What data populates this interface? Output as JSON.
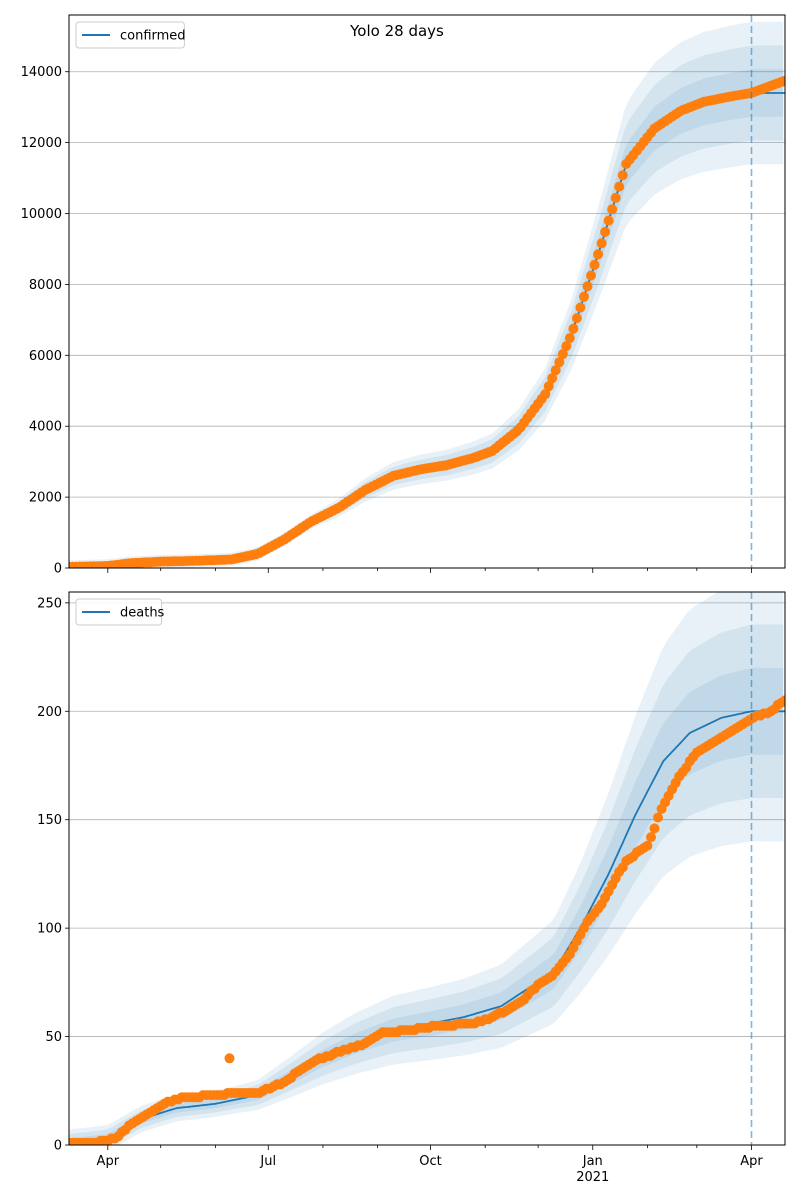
{
  "chart_data": [
    {
      "type": "line",
      "title": "Yolo 28 days",
      "legend": {
        "labels": [
          "confirmed"
        ],
        "location": "upper-left"
      },
      "xlim": [
        "2020-03-10",
        "2021-04-20"
      ],
      "ylim": [
        0,
        15600
      ],
      "yticks": [
        0,
        2000,
        4000,
        6000,
        8000,
        10000,
        12000,
        14000
      ],
      "xtick_labels": [
        "Apr",
        "Jul",
        "Oct",
        "Jan\n2021",
        "Apr"
      ],
      "grid": "horizontal",
      "forecast_start": "2021-04-01",
      "fit_series": {
        "name": "confirmed",
        "color": "#1f77b4",
        "points": [
          [
            "2020-03-10",
            30
          ],
          [
            "2020-04-01",
            60
          ],
          [
            "2020-04-15",
            140
          ],
          [
            "2020-05-01",
            180
          ],
          [
            "2020-05-20",
            200
          ],
          [
            "2020-06-10",
            240
          ],
          [
            "2020-06-25",
            400
          ],
          [
            "2020-07-10",
            800
          ],
          [
            "2020-07-25",
            1300
          ],
          [
            "2020-08-10",
            1700
          ],
          [
            "2020-08-25",
            2200
          ],
          [
            "2020-09-10",
            2600
          ],
          [
            "2020-09-25",
            2780
          ],
          [
            "2020-10-10",
            2900
          ],
          [
            "2020-10-25",
            3100
          ],
          [
            "2020-11-05",
            3300
          ],
          [
            "2020-11-20",
            3900
          ],
          [
            "2020-12-05",
            4900
          ],
          [
            "2020-12-20",
            6600
          ],
          [
            "2021-01-05",
            9000
          ],
          [
            "2021-01-20",
            11400
          ],
          [
            "2021-02-05",
            12400
          ],
          [
            "2021-02-20",
            12900
          ],
          [
            "2021-03-05",
            13150
          ],
          [
            "2021-03-20",
            13300
          ],
          [
            "2021-04-01",
            13400
          ],
          [
            "2021-04-20",
            13400
          ]
        ]
      },
      "observed": {
        "color": "#ff7f0e",
        "points": [
          [
            "2020-03-10",
            30
          ],
          [
            "2020-04-01",
            60
          ],
          [
            "2020-04-15",
            140
          ],
          [
            "2020-05-01",
            180
          ],
          [
            "2020-05-20",
            200
          ],
          [
            "2020-06-10",
            240
          ],
          [
            "2020-06-25",
            400
          ],
          [
            "2020-07-10",
            800
          ],
          [
            "2020-07-25",
            1300
          ],
          [
            "2020-08-10",
            1700
          ],
          [
            "2020-08-25",
            2200
          ],
          [
            "2020-09-10",
            2600
          ],
          [
            "2020-09-25",
            2780
          ],
          [
            "2020-10-10",
            2900
          ],
          [
            "2020-10-25",
            3100
          ],
          [
            "2020-11-05",
            3300
          ],
          [
            "2020-11-20",
            3900
          ],
          [
            "2020-12-05",
            4900
          ],
          [
            "2020-12-20",
            6600
          ],
          [
            "2021-01-05",
            9000
          ],
          [
            "2021-01-20",
            11400
          ],
          [
            "2021-02-05",
            12400
          ],
          [
            "2021-02-20",
            12900
          ],
          [
            "2021-03-05",
            13150
          ],
          [
            "2021-03-20",
            13300
          ],
          [
            "2021-04-01",
            13400
          ],
          [
            "2021-04-20",
            13750
          ]
        ]
      },
      "bands": {
        "color": "#1f77b4",
        "opacity": 0.1,
        "relative_widths": [
          0.05,
          0.1,
          0.15
        ]
      }
    },
    {
      "type": "line",
      "title": "",
      "legend": {
        "labels": [
          "deaths"
        ],
        "location": "upper-left"
      },
      "xlim": [
        "2020-03-10",
        "2021-04-20"
      ],
      "ylim": [
        0,
        255
      ],
      "yticks": [
        0,
        50,
        100,
        150,
        200,
        250
      ],
      "xtick_labels": [
        "Apr",
        "Jul",
        "Oct",
        "Jan\n2021",
        "Apr"
      ],
      "grid": "horizontal",
      "forecast_start": "2021-04-01",
      "fit_series": {
        "name": "deaths",
        "color": "#1f77b4",
        "points": [
          [
            "2020-03-10",
            1
          ],
          [
            "2020-04-01",
            3
          ],
          [
            "2020-04-20",
            12
          ],
          [
            "2020-05-10",
            17
          ],
          [
            "2020-06-01",
            19
          ],
          [
            "2020-06-25",
            23
          ],
          [
            "2020-07-15",
            32
          ],
          [
            "2020-08-01",
            40
          ],
          [
            "2020-08-20",
            47
          ],
          [
            "2020-09-10",
            53
          ],
          [
            "2020-10-01",
            56
          ],
          [
            "2020-10-20",
            59
          ],
          [
            "2020-11-10",
            64
          ],
          [
            "2020-11-25",
            72
          ],
          [
            "2020-12-10",
            80
          ],
          [
            "2020-12-25",
            100
          ],
          [
            "2021-01-10",
            125
          ],
          [
            "2021-01-25",
            152
          ],
          [
            "2021-02-10",
            177
          ],
          [
            "2021-02-25",
            190
          ],
          [
            "2021-03-15",
            197
          ],
          [
            "2021-04-01",
            200
          ],
          [
            "2021-04-20",
            200
          ]
        ]
      },
      "observed": {
        "color": "#ff7f0e",
        "points": [
          [
            "2020-03-10",
            1
          ],
          [
            "2020-03-25",
            1
          ],
          [
            "2020-04-05",
            3
          ],
          [
            "2020-04-15",
            10
          ],
          [
            "2020-04-25",
            15
          ],
          [
            "2020-05-05",
            20
          ],
          [
            "2020-05-15",
            22
          ],
          [
            "2020-06-01",
            23
          ],
          [
            "2020-06-15",
            24
          ],
          [
            "2020-06-09",
            40
          ],
          [
            "2020-06-25",
            24
          ],
          [
            "2020-07-10",
            29
          ],
          [
            "2020-07-25",
            38
          ],
          [
            "2020-08-10",
            43
          ],
          [
            "2020-08-25",
            47
          ],
          [
            "2020-09-05",
            52
          ],
          [
            "2020-09-20",
            53
          ],
          [
            "2020-10-05",
            55
          ],
          [
            "2020-10-25",
            56
          ],
          [
            "2020-11-05",
            59
          ],
          [
            "2020-11-20",
            65
          ],
          [
            "2020-12-01",
            74
          ],
          [
            "2020-12-10",
            79
          ],
          [
            "2020-12-20",
            89
          ],
          [
            "2020-12-30",
            104
          ],
          [
            "2021-01-05",
            110
          ],
          [
            "2021-01-12",
            120
          ],
          [
            "2021-01-20",
            131
          ],
          [
            "2021-02-01",
            138
          ],
          [
            "2021-02-10",
            157
          ],
          [
            "2021-02-20",
            171
          ],
          [
            "2021-03-01",
            181
          ],
          [
            "2021-03-10",
            185
          ],
          [
            "2021-03-20",
            190
          ],
          [
            "2021-04-01",
            197
          ],
          [
            "2021-04-12",
            200
          ],
          [
            "2021-04-20",
            205
          ]
        ]
      },
      "bands": {
        "color": "#1f77b4",
        "opacity": 0.1,
        "relative_widths": [
          0.1,
          0.2,
          0.3
        ]
      }
    }
  ]
}
